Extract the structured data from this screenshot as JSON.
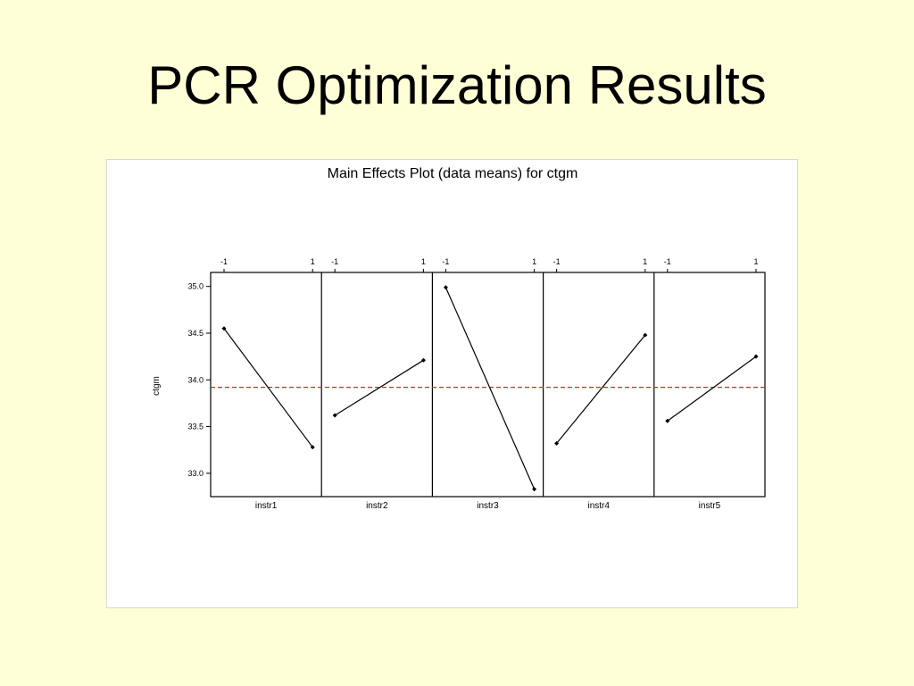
{
  "slide": {
    "title": "PCR Optimization Results"
  },
  "chart_data": {
    "type": "line",
    "title": "Main Effects Plot (data means) for ctgm",
    "ylabel": "ctgm",
    "xlabel": "",
    "ylim": [
      32.75,
      35.15
    ],
    "yticks": [
      "35.0",
      "34.5",
      "34.0",
      "33.5",
      "33.0"
    ],
    "ytick_values": [
      35.0,
      34.5,
      34.0,
      33.5,
      33.0
    ],
    "grand_mean": 33.92,
    "levels": [
      "-1",
      "1"
    ],
    "factors": [
      {
        "name": "instr1",
        "values": [
          34.55,
          33.28
        ]
      },
      {
        "name": "instr2",
        "values": [
          33.62,
          34.21
        ]
      },
      {
        "name": "instr3",
        "values": [
          34.99,
          32.83
        ]
      },
      {
        "name": "instr4",
        "values": [
          33.32,
          34.48
        ]
      },
      {
        "name": "instr5",
        "values": [
          33.56,
          34.25
        ]
      }
    ],
    "colors": {
      "line": "#000000",
      "mean_line": "#e0261c",
      "frame": "#000000"
    },
    "grid": false,
    "legend": "none"
  }
}
